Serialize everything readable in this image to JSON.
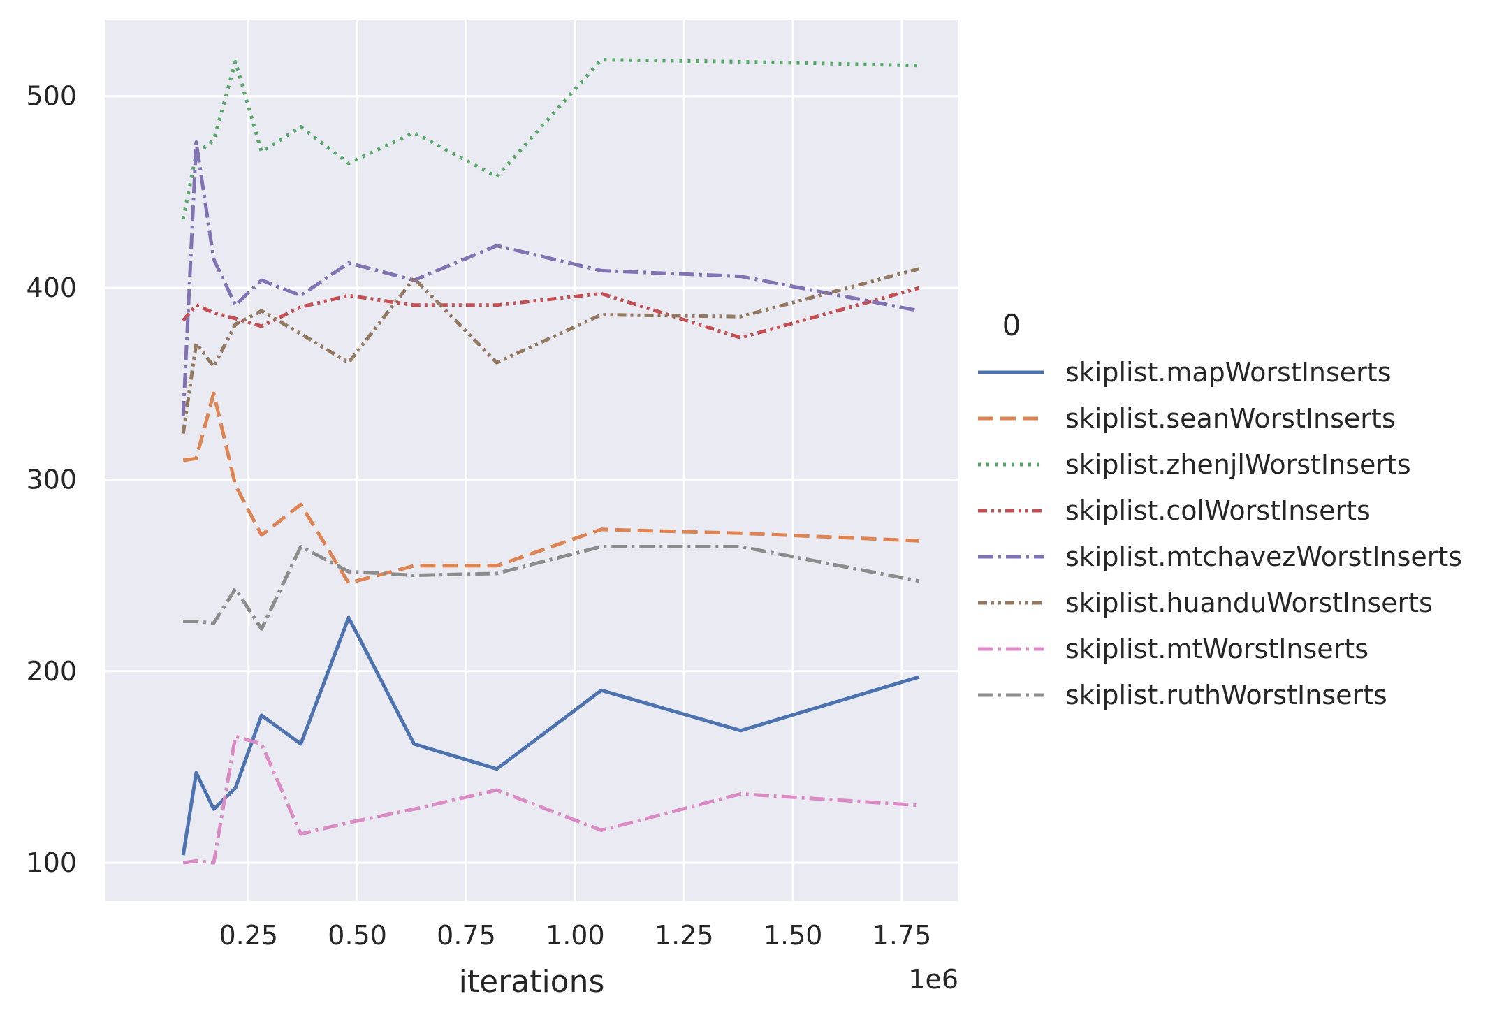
{
  "chart_data": {
    "type": "line",
    "xlabel": "iterations",
    "ylabel": "",
    "x_offset_text": "1e6",
    "x_ticks": [
      "0.25",
      "0.50",
      "0.75",
      "1.00",
      "1.25",
      "1.50",
      "1.75"
    ],
    "x_tick_values": [
      250000,
      500000,
      750000,
      1000000,
      1250000,
      1500000,
      1750000
    ],
    "y_ticks": [
      "100",
      "200",
      "300",
      "400",
      "500"
    ],
    "y_tick_values": [
      100,
      200,
      300,
      400,
      500
    ],
    "xlim": [
      -80000,
      1880000
    ],
    "ylim": [
      80,
      540
    ],
    "grid": true,
    "legend_title": "0",
    "legend_position": "right",
    "x": [
      100000,
      130000,
      170000,
      220000,
      280000,
      370000,
      480000,
      630000,
      820000,
      1060000,
      1380000,
      1790000
    ],
    "series": [
      {
        "name": "skiplist.mapWorstInserts",
        "color": "#4c72b0",
        "dash": "solid",
        "values": [
          104,
          147,
          128,
          139,
          177,
          162,
          228,
          162,
          149,
          190,
          169,
          197
        ]
      },
      {
        "name": "skiplist.seanWorstInserts",
        "color": "#dd8452",
        "dash": "dashed",
        "values": [
          310,
          311,
          345,
          297,
          271,
          287,
          246,
          255,
          255,
          274,
          272,
          268
        ]
      },
      {
        "name": "skiplist.zhenjlWorstInserts",
        "color": "#55a868",
        "dash": "dotted",
        "values": [
          436,
          470,
          477,
          518,
          471,
          484,
          465,
          481,
          458,
          519,
          518,
          516
        ]
      },
      {
        "name": "skiplist.colWorstInserts",
        "color": "#c44e52",
        "dash": "dashdotdot",
        "values": [
          383,
          391,
          387,
          384,
          380,
          390,
          396,
          391,
          391,
          397,
          374,
          400
        ]
      },
      {
        "name": "skiplist.mtchavezWorstInserts",
        "color": "#8172b3",
        "dash": "dashdot",
        "values": [
          333,
          476,
          415,
          391,
          404,
          396,
          413,
          404,
          422,
          409,
          406,
          388
        ]
      },
      {
        "name": "skiplist.huanduWorstInserts",
        "color": "#937860",
        "dash": "dashdotdot",
        "values": [
          324,
          371,
          359,
          381,
          388,
          376,
          361,
          405,
          361,
          386,
          385,
          410
        ]
      },
      {
        "name": "skiplist.mtWorstInserts",
        "color": "#da8bc3",
        "dash": "dashdot",
        "values": [
          100,
          101,
          100,
          166,
          162,
          115,
          121,
          128,
          138,
          117,
          136,
          130
        ]
      },
      {
        "name": "skiplist.ruthWorstInserts",
        "color": "#8c8c8c",
        "dash": "dashdot",
        "values": [
          226,
          226,
          225,
          243,
          222,
          265,
          252,
          250,
          251,
          265,
          265,
          247
        ]
      }
    ]
  }
}
